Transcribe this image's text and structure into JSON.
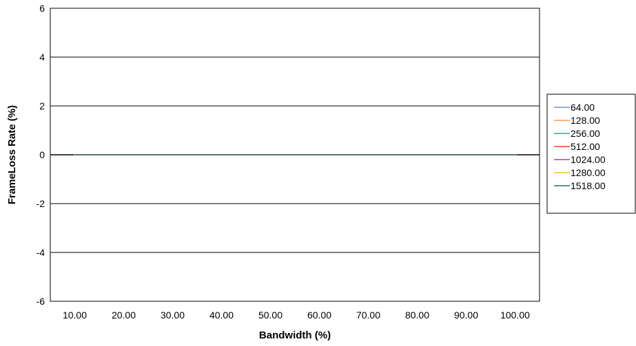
{
  "chart_data": {
    "type": "line",
    "title": "",
    "xlabel": "Bandwidth (%)",
    "ylabel": "FrameLoss Rate (%)",
    "categories": [
      "10.00",
      "20.00",
      "30.00",
      "40.00",
      "50.00",
      "60.00",
      "70.00",
      "80.00",
      "90.00",
      "100.00"
    ],
    "ylim": [
      -6,
      6
    ],
    "yticks": [
      -6,
      -4,
      -2,
      0,
      2,
      4,
      6
    ],
    "grid": true,
    "legend_position": "right",
    "series": [
      {
        "name": "64.00",
        "color": "#6f8fc4",
        "values": [
          0,
          0,
          0,
          0,
          0,
          0,
          0,
          0,
          0,
          0
        ]
      },
      {
        "name": "128.00",
        "color": "#f2a04a",
        "values": [
          0,
          0,
          0,
          0,
          0,
          0,
          0,
          0,
          0,
          0
        ]
      },
      {
        "name": "256.00",
        "color": "#2fa58f",
        "values": [
          0,
          0,
          0,
          0,
          0,
          0,
          0,
          0,
          0,
          0
        ]
      },
      {
        "name": "512.00",
        "color": "#d94d1a",
        "values": [
          0,
          0,
          0,
          0,
          0,
          0,
          0,
          0,
          0,
          0
        ]
      },
      {
        "name": "1024.00",
        "color": "#b5467f",
        "values": [
          0,
          0,
          0,
          0,
          0,
          0,
          0,
          0,
          0,
          0
        ]
      },
      {
        "name": "1280.00",
        "color": "#f2c230",
        "values": [
          0,
          0,
          0,
          0,
          0,
          0,
          0,
          0,
          0,
          0
        ]
      },
      {
        "name": "1518.00",
        "color": "#2e6b6b",
        "values": [
          0,
          0,
          0,
          0,
          0,
          0,
          0,
          0,
          0,
          0
        ]
      }
    ]
  }
}
